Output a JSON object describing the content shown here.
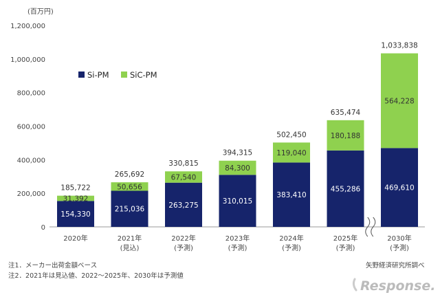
{
  "chart_data": {
    "type": "bar",
    "stacked": true,
    "unit_label": "(百万円)",
    "categories": [
      "2020年",
      "2021年",
      "2022年",
      "2023年",
      "2024年",
      "2025年",
      "2030年"
    ],
    "category_sublabels": [
      "",
      "(見込)",
      "(予測)",
      "(予測)",
      "(予測)",
      "(予測)",
      "(予測)"
    ],
    "series": [
      {
        "name": "Si-PM",
        "color": "#16246b",
        "label_color": "#ffffff",
        "values": [
          154330,
          215036,
          263275,
          310015,
          383410,
          455286,
          469610
        ]
      },
      {
        "name": "SiC-PM",
        "color": "#8fd14f",
        "label_color": "#333333",
        "values": [
          31392,
          50656,
          67540,
          84300,
          119040,
          180188,
          564228
        ]
      }
    ],
    "totals": [
      185722,
      265692,
      330815,
      394315,
      502450,
      635474,
      1033838
    ],
    "ylim": [
      0,
      1200000
    ],
    "yticks": [
      0,
      200000,
      400000,
      600000,
      800000,
      1000000,
      1200000
    ],
    "axis_break_between": [
      "2025年",
      "2030年"
    ],
    "legend_position": "upper-left",
    "grid": false
  },
  "notes": {
    "note1": "注1．メーカー出荷金額ベース",
    "note2": "注2．2021年は見込値、2022～2025年、2030年は予測値",
    "source": "矢野経済研究所調べ"
  },
  "watermark": {
    "text": "Response.",
    "color": "#bbbbbb"
  }
}
